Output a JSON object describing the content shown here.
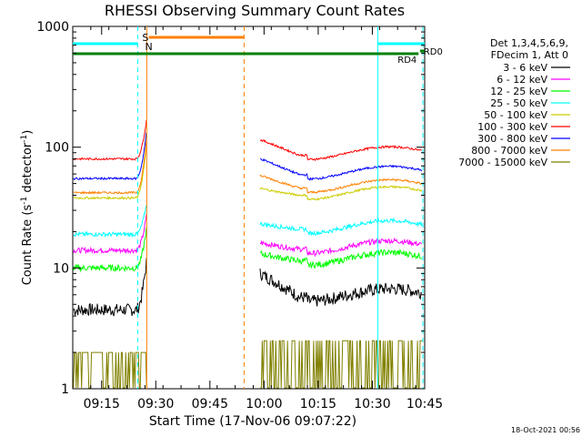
{
  "chart_data": {
    "type": "line",
    "title": "RHESSI Observing Summary Count Rates",
    "xlabel": "Start Time (17-Nov-06 09:07:22)",
    "ylabel_main": "Count Rate (s",
    "ylabel_sup1": "-1",
    "ylabel_mid": " detector",
    "ylabel_sup2": "-1",
    "ylabel_end": ")",
    "yscale": "log",
    "ylim": [
      1,
      1000
    ],
    "xlim_minutes": [
      0,
      97.5
    ],
    "x_ticks": [
      {
        "min": 8,
        "label": "09:15"
      },
      {
        "min": 23,
        "label": "09:30"
      },
      {
        "min": 38,
        "label": "09:45"
      },
      {
        "min": 53,
        "label": "10:00"
      },
      {
        "min": 68,
        "label": "10:15"
      },
      {
        "min": 83,
        "label": "10:30"
      },
      {
        "min": 98,
        "label": "10:45"
      }
    ],
    "y_ticks": [
      {
        "value": 1,
        "label": "1"
      },
      {
        "value": 10,
        "label": "10"
      },
      {
        "value": 100,
        "label": "100"
      },
      {
        "value": 1000,
        "label": "1000"
      }
    ],
    "legend_header_1": "Det 1,3,4,5,6,9,",
    "legend_header_2": "FDecim 1, Att 0",
    "series": [
      {
        "name": "3 - 6 keV",
        "color": "#000000",
        "pre": 4.5,
        "post": 6.0,
        "pre_peak": 12,
        "post_first": 9,
        "noise": 0.12
      },
      {
        "name": "6 - 12 keV",
        "color": "#ff00ff",
        "pre": 14,
        "post": 15,
        "pre_peak": 28,
        "post_first": 16,
        "noise": 0.05
      },
      {
        "name": "12 - 25 keV",
        "color": "#00ff00",
        "pre": 10,
        "post": 12,
        "pre_peak": 22,
        "post_first": 13,
        "noise": 0.06
      },
      {
        "name": "25 - 50 keV",
        "color": "#00ffff",
        "pre": 19,
        "post": 22,
        "pre_peak": 35,
        "post_first": 23,
        "noise": 0.04
      },
      {
        "name": "50 - 100 keV",
        "color": "#cccc00",
        "pre": 38,
        "post": 42,
        "pre_peak": 110,
        "post_first": 45,
        "noise": 0.02
      },
      {
        "name": "100 - 300 keV",
        "color": "#ff0000",
        "pre": 80,
        "post": 90,
        "pre_peak": 175,
        "post_first": 115,
        "noise": 0.02
      },
      {
        "name": "300 - 800 keV",
        "color": "#0000ff",
        "pre": 55,
        "post": 62,
        "pre_peak": 140,
        "post_first": 80,
        "noise": 0.02
      },
      {
        "name": "800 - 7000 keV",
        "color": "#ff8000",
        "pre": 42,
        "post": 48,
        "pre_peak": 120,
        "post_first": 58,
        "noise": 0.02
      },
      {
        "name": "7000 - 15000 keV",
        "color": "#808000",
        "pre": 1.6,
        "post": 2.0,
        "pre_peak": 30,
        "post_first": 3,
        "noise": 0.0
      }
    ],
    "data_gap_minutes": [
      20.5,
      51.5
    ],
    "saa_start_min": 20.5,
    "night_end_min": 20.8,
    "vertical_markers": [
      {
        "min": 18.0,
        "color": "#00ffff",
        "style": "dashed"
      },
      {
        "min": 20.5,
        "color": "#ff8000",
        "style": "solid"
      },
      {
        "min": 47.5,
        "color": "#ff8000",
        "style": "dashed"
      },
      {
        "min": 84.5,
        "color": "#00ffff",
        "style": "solid"
      },
      {
        "min": 97.0,
        "color": "#00ffff",
        "style": "dashed"
      }
    ],
    "annotations": {
      "saa_flag": "S",
      "night_flag": "N",
      "rd4": "RD4",
      "rd0": "RD0"
    }
  },
  "footer_timestamp": "18-Oct-2021 00:56"
}
